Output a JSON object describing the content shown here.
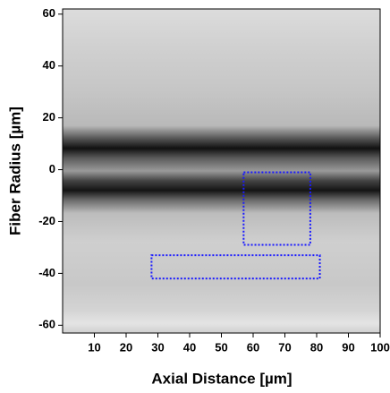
{
  "chart_data": {
    "type": "heatmap",
    "xlabel": "Axial Distance [µm]",
    "ylabel": "Fiber Radius [µm]",
    "xlim": [
      0,
      100
    ],
    "xticks": [
      10,
      20,
      30,
      40,
      50,
      60,
      70,
      80,
      90,
      100
    ],
    "ylim": [
      -63,
      62
    ],
    "yticks": [
      -60,
      -40,
      -20,
      0,
      20,
      40,
      60
    ],
    "regions": [
      {
        "x": [
          57,
          78
        ],
        "y": [
          -29,
          -1
        ]
      },
      {
        "x": [
          28,
          81
        ],
        "y": [
          -42,
          -33
        ]
      }
    ],
    "region_color": "#1a1aff"
  }
}
